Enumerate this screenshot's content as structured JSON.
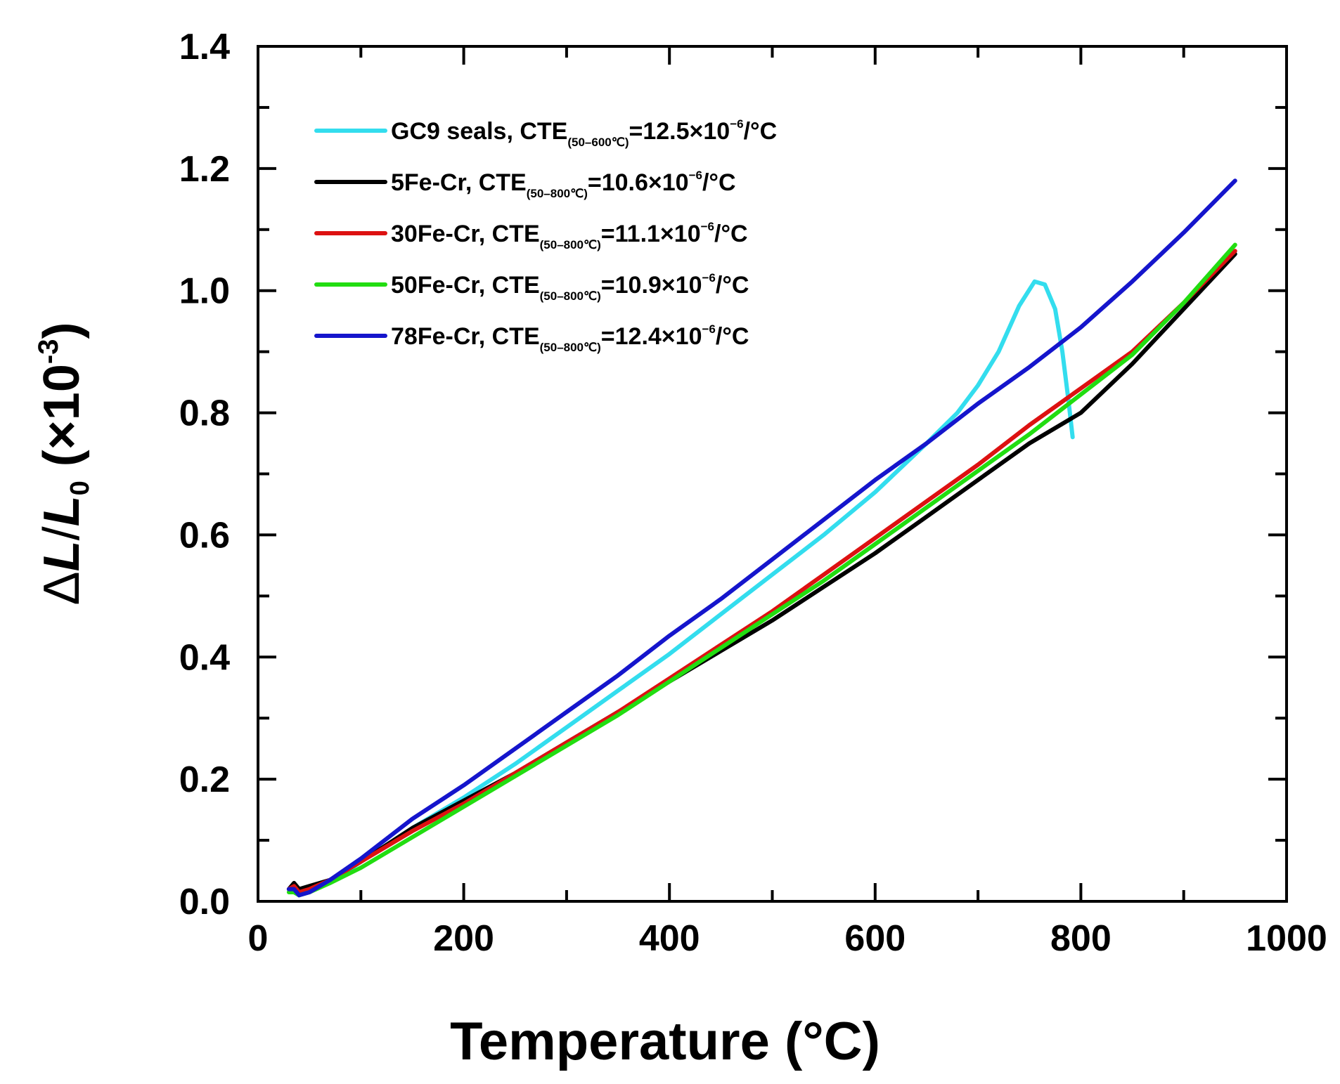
{
  "chart_data": {
    "type": "line",
    "xlabel": "Temperature (°C)",
    "ylabel": "ΔL/L₀ (×10⁻³)",
    "ylabel_parts": {
      "delta": "Δ",
      "L": "L",
      "slash": "/",
      "L0": "L",
      "sub0": "0",
      "unit_open": " (×10",
      "exp": "-3",
      "unit_close": ")"
    },
    "xlim": [
      0,
      1000
    ],
    "ylim": [
      0.0,
      1.4
    ],
    "xticks": [
      0,
      200,
      400,
      600,
      800,
      1000
    ],
    "xtick_labels": [
      "0",
      "200",
      "400",
      "600",
      "800",
      "1000"
    ],
    "yticks": [
      0.0,
      0.2,
      0.4,
      0.6,
      0.8,
      1.0,
      1.2,
      1.4
    ],
    "ytick_labels": [
      "0.0",
      "0.2",
      "0.4",
      "0.6",
      "0.8",
      "1.0",
      "1.2",
      "1.4"
    ],
    "legend_position": "top-left",
    "series": [
      {
        "name": "GC9 seals",
        "color": "#33ddee",
        "legend": {
          "prefix": "GC9 seals, CTE",
          "sub": "(50–600℃)",
          "value": "=12.5×10",
          "exp": "−6",
          "unit": "/°C"
        },
        "x": [
          30,
          35,
          40,
          50,
          70,
          100,
          150,
          200,
          250,
          300,
          350,
          400,
          450,
          500,
          550,
          600,
          650,
          680,
          700,
          720,
          740,
          755,
          765,
          775,
          782,
          788,
          792
        ],
        "y": [
          0.02,
          0.02,
          0.01,
          0.02,
          0.03,
          0.065,
          0.12,
          0.17,
          0.225,
          0.285,
          0.345,
          0.405,
          0.47,
          0.535,
          0.6,
          0.67,
          0.75,
          0.8,
          0.845,
          0.9,
          0.975,
          1.015,
          1.01,
          0.97,
          0.9,
          0.82,
          0.76
        ]
      },
      {
        "name": "5Fe-Cr",
        "color": "#000000",
        "legend": {
          "prefix": "5Fe-Cr, CTE",
          "sub": "(50–800℃)",
          "value": "=10.6×10",
          "exp": "−6",
          "unit": "/°C"
        },
        "x": [
          30,
          35,
          40,
          50,
          70,
          100,
          150,
          200,
          250,
          300,
          350,
          400,
          450,
          500,
          550,
          600,
          650,
          700,
          750,
          800,
          850,
          900,
          950
        ],
        "y": [
          0.02,
          0.03,
          0.02,
          0.025,
          0.035,
          0.065,
          0.12,
          0.165,
          0.21,
          0.26,
          0.31,
          0.36,
          0.41,
          0.46,
          0.515,
          0.57,
          0.63,
          0.69,
          0.75,
          0.8,
          0.88,
          0.97,
          1.06
        ]
      },
      {
        "name": "30Fe-Cr",
        "color": "#dd1111",
        "legend": {
          "prefix": "30Fe-Cr, CTE",
          "sub": "(50–800℃)",
          "value": "=11.1×10",
          "exp": "−6",
          "unit": "/°C"
        },
        "x": [
          30,
          35,
          40,
          50,
          70,
          100,
          150,
          200,
          250,
          300,
          350,
          400,
          450,
          500,
          550,
          600,
          650,
          700,
          750,
          800,
          850,
          900,
          950
        ],
        "y": [
          0.02,
          0.025,
          0.015,
          0.02,
          0.035,
          0.065,
          0.115,
          0.16,
          0.21,
          0.26,
          0.31,
          0.365,
          0.42,
          0.475,
          0.535,
          0.595,
          0.655,
          0.715,
          0.78,
          0.84,
          0.9,
          0.98,
          1.065
        ]
      },
      {
        "name": "50Fe-Cr",
        "color": "#22dd11",
        "legend": {
          "prefix": "50Fe-Cr, CTE",
          "sub": "(50–800℃)",
          "value": "=10.9×10",
          "exp": "−6",
          "unit": "/°C"
        },
        "x": [
          30,
          35,
          40,
          50,
          70,
          100,
          150,
          200,
          250,
          300,
          350,
          400,
          450,
          500,
          550,
          600,
          650,
          700,
          750,
          800,
          850,
          900,
          950
        ],
        "y": [
          0.015,
          0.015,
          0.01,
          0.015,
          0.03,
          0.055,
          0.105,
          0.155,
          0.205,
          0.255,
          0.305,
          0.36,
          0.415,
          0.47,
          0.525,
          0.585,
          0.645,
          0.705,
          0.765,
          0.83,
          0.895,
          0.98,
          1.075
        ]
      },
      {
        "name": "78Fe-Cr",
        "color": "#1515cc",
        "legend": {
          "prefix": "78Fe-Cr, CTE",
          "sub": "(50–800℃)",
          "value": "=12.4×10",
          "exp": "−6",
          "unit": "/°C"
        },
        "x": [
          30,
          35,
          40,
          50,
          70,
          100,
          150,
          200,
          250,
          300,
          350,
          400,
          450,
          500,
          550,
          600,
          650,
          700,
          750,
          800,
          850,
          900,
          950
        ],
        "y": [
          0.02,
          0.02,
          0.01,
          0.015,
          0.035,
          0.07,
          0.135,
          0.19,
          0.25,
          0.31,
          0.37,
          0.435,
          0.495,
          0.56,
          0.625,
          0.69,
          0.75,
          0.815,
          0.875,
          0.94,
          1.015,
          1.095,
          1.18
        ]
      }
    ]
  }
}
